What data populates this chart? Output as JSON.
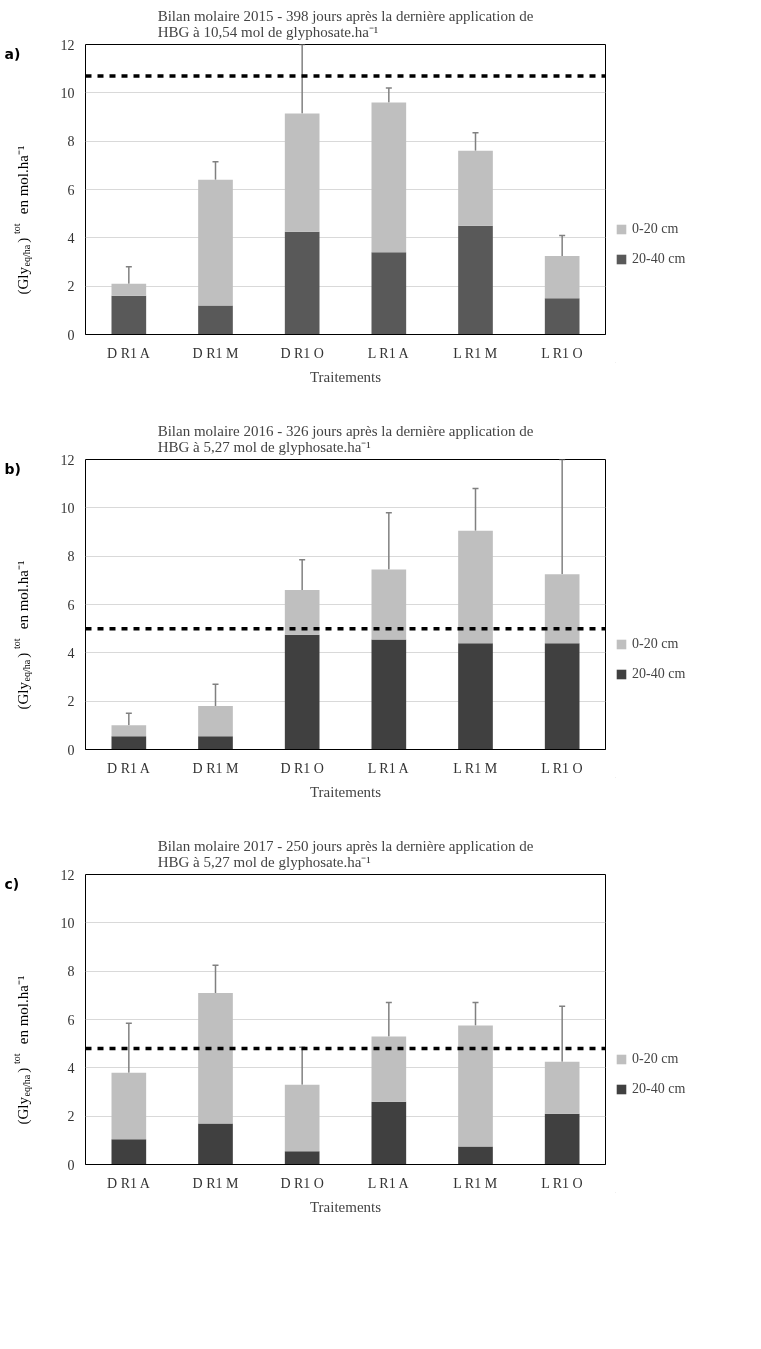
{
  "chart_data": [
    {
      "type": "bar",
      "stacked": true,
      "title": "Bilan molaire 2015 - 398 jours après la dernière application de\nHBG à 10,54 mol de glyphosate.ha⁻¹",
      "xlabel": "Traitements",
      "ylabel": "(Gly$_{eq/ha}$)$^{tot}$ en mol.ha⁻¹",
      "annotations": [
        "a)"
      ],
      "categories": [
        "D R1 A",
        "D R1 M",
        "D R1 O",
        "L R1 A",
        "L R1 M",
        "L R1 O"
      ],
      "ylim": [
        0,
        12
      ],
      "yticks": [
        0,
        2,
        4,
        6,
        8,
        10,
        12
      ],
      "grid": "y",
      "legend": "right",
      "series": [
        {
          "name": "20-40 cm",
          "color": "#595959",
          "values": [
            1.6,
            1.2,
            4.25,
            3.4,
            4.5,
            1.5
          ]
        },
        {
          "name": "0-20 cm",
          "color": "#bfbfbf",
          "values": [
            0.5,
            5.2,
            4.9,
            6.2,
            3.1,
            1.75
          ],
          "errors": [
            [
              2.1,
              2.8
            ],
            [
              6.4,
              7.15
            ],
            [
              9.15,
              12
            ],
            [
              9.6,
              10.2
            ],
            [
              7.6,
              8.35
            ],
            [
              3.25,
              4.1
            ]
          ]
        }
      ],
      "ref_lines": [
        {
          "axis": "y",
          "value": 10.7,
          "color": "#000000",
          "line_style": "dashed"
        }
      ]
    },
    {
      "type": "bar",
      "stacked": true,
      "title": "Bilan molaire 2016 - 326 jours après la dernière application de\nHBG à 5,27 mol de glyphosate.ha⁻¹",
      "xlabel": "Traitements",
      "ylabel": "(Gly$_{eq/ha}$)$^{tot}$ en mol.ha⁻¹",
      "annotations": [
        "b)"
      ],
      "categories": [
        "D R1 A",
        "D R1 M",
        "D R1 O",
        "L R1 A",
        "L R1 M",
        "L R1 O"
      ],
      "ylim": [
        0,
        12
      ],
      "yticks": [
        0,
        2,
        4,
        6,
        8,
        10,
        12
      ],
      "grid": "y",
      "legend": "right",
      "series": [
        {
          "name": "20-40 cm",
          "color": "#404040",
          "values": [
            0.55,
            0.55,
            4.75,
            4.55,
            4.4,
            4.4
          ]
        },
        {
          "name": "0-20 cm",
          "color": "#bfbfbf",
          "values": [
            0.45,
            1.25,
            1.85,
            2.9,
            4.65,
            2.85
          ],
          "errors": [
            [
              1.0,
              1.5
            ],
            [
              1.8,
              2.7
            ],
            [
              6.6,
              7.85
            ],
            [
              7.45,
              9.8
            ],
            [
              9.05,
              10.8
            ],
            [
              7.25,
              12
            ]
          ]
        }
      ],
      "ref_lines": [
        {
          "axis": "y",
          "value": 5.0,
          "color": "#000000",
          "line_style": "dashed"
        }
      ]
    },
    {
      "type": "bar",
      "stacked": true,
      "title": "Bilan molaire 2017 - 250 jours après la dernière application de\nHBG à 5,27 mol de glyphosate.ha⁻¹",
      "xlabel": "Traitements",
      "ylabel": "(Gly$_{eq/ha}$)$^{tot}$ en mol.ha⁻¹",
      "annotations": [
        "c)"
      ],
      "categories": [
        "D R1 A",
        "D R1 M",
        "D R1 O",
        "L R1 A",
        "L R1 M",
        "L R1 O"
      ],
      "ylim": [
        0,
        12
      ],
      "yticks": [
        0,
        2,
        4,
        6,
        8,
        10,
        12
      ],
      "grid": "y",
      "legend": "right",
      "series": [
        {
          "name": "20-40 cm",
          "color": "#404040",
          "values": [
            1.05,
            1.7,
            0.55,
            2.6,
            0.75,
            2.1
          ]
        },
        {
          "name": "0-20 cm",
          "color": "#bfbfbf",
          "values": [
            2.75,
            5.4,
            2.75,
            2.7,
            5.0,
            2.15
          ],
          "errors": [
            [
              3.8,
              5.85
            ],
            [
              7.1,
              8.25
            ],
            [
              3.3,
              4.85
            ],
            [
              5.3,
              6.7
            ],
            [
              5.75,
              6.7
            ],
            [
              4.25,
              6.55
            ]
          ]
        }
      ],
      "ref_lines": [
        {
          "axis": "y",
          "value": 4.8,
          "color": "#000000",
          "line_style": "dashed"
        }
      ]
    }
  ]
}
